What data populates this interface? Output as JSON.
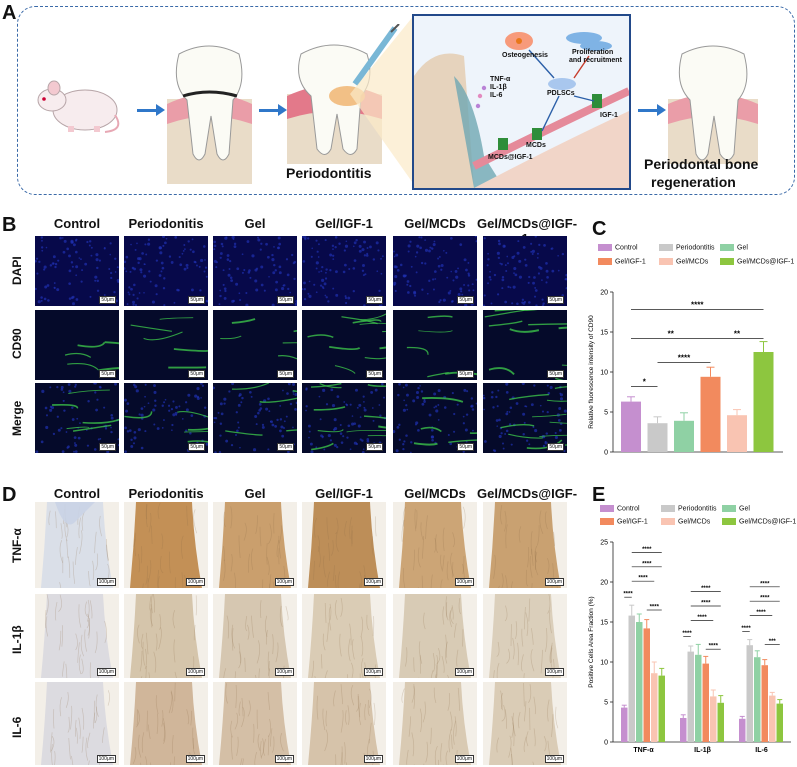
{
  "panels": {
    "a": "A",
    "b": "B",
    "c": "C",
    "d": "D",
    "e": "E"
  },
  "schematic": {
    "label_periodontitis": "Periodontitis",
    "label_regeneration_1": "Periodontal bone",
    "label_regeneration_2": "regeneration",
    "mech_osteogenesis": "Osteogenesis",
    "mech_prolif_1": "Proliferation",
    "mech_prolif_2": "and recruitment",
    "mech_tnf": "TNF-α",
    "mech_il1": "IL-1β",
    "mech_il6": "IL-6",
    "mech_pdlscs": "PDLSCs",
    "mech_igf": "IGF-1",
    "mech_mcds": "MCDs",
    "mech_mcds_igf": "MCDs@IGF-1"
  },
  "groups": [
    "Control",
    "Periodonitis",
    "Gel",
    "Gel/IGF-1",
    "Gel/MCDs",
    "Gel/MCDs@IGF-1"
  ],
  "fluo_rows": [
    "DAPI",
    "CD90",
    "Merge"
  ],
  "ihc_rows": [
    "TNF-α",
    "IL-1β",
    "IL-6"
  ],
  "scalebar_fluo": "50μm",
  "scalebar_ihc": "100μm",
  "colors": {
    "Control": "#c58fcf",
    "Periodontitis": "#c9c9c9",
    "Gel": "#8fd1a4",
    "Gel/IGF-1": "#f28a5e",
    "Gel/MCDs": "#f9c4b2",
    "Gel/MCDs@IGF-1": "#8dc63f"
  },
  "chart_data": [
    {
      "type": "bar",
      "legend": [
        "Control",
        "Periodontitis",
        "Gel",
        "Gel/IGF-1",
        "Gel/MCDs",
        "Gel/MCDs@IGF-1"
      ],
      "ylabel": "Relative fluorescence intensity of CD90",
      "ylim": [
        0,
        20
      ],
      "yticks": [
        "0",
        "5",
        "10",
        "15",
        "20"
      ],
      "values": [
        6.3,
        3.6,
        3.9,
        9.4,
        4.6,
        12.5
      ],
      "errors": [
        0.6,
        0.8,
        1.0,
        1.2,
        0.7,
        1.3
      ],
      "significance": [
        {
          "from": 0,
          "to": 1,
          "label": "*"
        },
        {
          "from": 1,
          "to": 3,
          "label": "****"
        },
        {
          "from": 0,
          "to": 3,
          "label": "**"
        },
        {
          "from": 3,
          "to": 5,
          "label": "**"
        },
        {
          "from": 0,
          "to": 5,
          "label": "****"
        }
      ]
    },
    {
      "type": "bar",
      "legend": [
        "Control",
        "Periodontitis",
        "Gel",
        "Gel/IGF-1",
        "Gel/MCDs",
        "Gel/MCDs@IGF-1"
      ],
      "ylabel": "Positive Cells Area Fraction (%)",
      "ylim": [
        0,
        25
      ],
      "yticks": [
        "0",
        "5",
        "10",
        "15",
        "20",
        "25"
      ],
      "categories": [
        "TNF-α",
        "IL-1β",
        "IL-6"
      ],
      "series": [
        {
          "name": "Control",
          "values": [
            4.3,
            3.0,
            2.9
          ],
          "errors": [
            0.3,
            0.4,
            0.3
          ]
        },
        {
          "name": "Periodontitis",
          "values": [
            15.8,
            11.3,
            12.1
          ],
          "errors": [
            1.3,
            0.7,
            0.7
          ]
        },
        {
          "name": "Gel",
          "values": [
            15.0,
            10.9,
            10.6
          ],
          "errors": [
            1.0,
            1.3,
            0.8
          ]
        },
        {
          "name": "Gel/IGF-1",
          "values": [
            14.2,
            9.8,
            9.6
          ],
          "errors": [
            1.1,
            0.9,
            0.7
          ]
        },
        {
          "name": "Gel/MCDs",
          "values": [
            8.6,
            5.7,
            5.8
          ],
          "errors": [
            1.4,
            0.8,
            0.4
          ]
        },
        {
          "name": "Gel/MCDs@IGF-1",
          "values": [
            8.3,
            4.9,
            4.8
          ],
          "errors": [
            0.9,
            0.9,
            0.5
          ]
        }
      ],
      "significance_label": "****",
      "significance_label_3": "***"
    }
  ]
}
